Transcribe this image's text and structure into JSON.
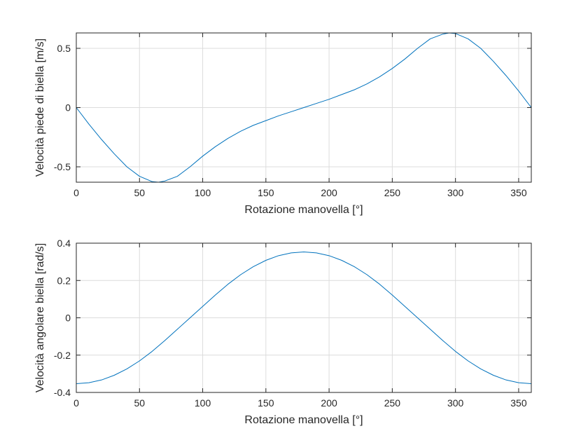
{
  "figure": {
    "background": "#ffffff",
    "axis_color": "#262626",
    "grid_color": "#dcdcdc",
    "line_color": "#0072bd"
  },
  "chart_data": [
    {
      "type": "line",
      "title": "",
      "xlabel": "Rotazione manovella [°]",
      "ylabel": "Velocità piede di biella [m/s]",
      "xlim": [
        0,
        360
      ],
      "ylim": [
        -0.63,
        0.63
      ],
      "xticks": [
        0,
        50,
        100,
        150,
        200,
        250,
        300,
        350
      ],
      "xtick_labels": [
        "0",
        "50",
        "100",
        "150",
        "200",
        "250",
        "300",
        "350"
      ],
      "yticks": [
        -0.5,
        0,
        0.5
      ],
      "ytick_labels": [
        "-0.5",
        "0",
        "0.5"
      ],
      "grid": true,
      "box": true,
      "series": [
        {
          "color": "#0072bd",
          "x": [
            0,
            10,
            20,
            30,
            40,
            50,
            60,
            65,
            70,
            80,
            90,
            100,
            110,
            120,
            130,
            140,
            150,
            160,
            170,
            180,
            190,
            200,
            210,
            220,
            230,
            240,
            250,
            260,
            270,
            280,
            290,
            295,
            300,
            310,
            320,
            330,
            340,
            350,
            360
          ],
          "y": [
            0,
            -0.14,
            -0.27,
            -0.39,
            -0.5,
            -0.58,
            -0.625,
            -0.63,
            -0.62,
            -0.58,
            -0.5,
            -0.41,
            -0.33,
            -0.26,
            -0.2,
            -0.15,
            -0.11,
            -0.07,
            -0.035,
            0,
            0.035,
            0.07,
            0.11,
            0.15,
            0.2,
            0.26,
            0.33,
            0.41,
            0.5,
            0.58,
            0.62,
            0.63,
            0.625,
            0.58,
            0.5,
            0.39,
            0.27,
            0.14,
            0
          ]
        }
      ]
    },
    {
      "type": "line",
      "title": "",
      "xlabel": "Rotazione manovella [°]",
      "ylabel": "Velocità angolare biella [rad/s]",
      "xlim": [
        0,
        360
      ],
      "ylim": [
        -0.4,
        0.4
      ],
      "xticks": [
        0,
        50,
        100,
        150,
        200,
        250,
        300,
        350
      ],
      "xtick_labels": [
        "0",
        "50",
        "100",
        "150",
        "200",
        "250",
        "300",
        "350"
      ],
      "yticks": [
        -0.4,
        -0.2,
        0,
        0.2,
        0.4
      ],
      "ytick_labels": [
        "-0.4",
        "-0.2",
        "0",
        "0.2",
        "0.4"
      ],
      "grid": true,
      "box": true,
      "series": [
        {
          "color": "#0072bd",
          "x": [
            0,
            10,
            20,
            30,
            40,
            50,
            60,
            70,
            80,
            90,
            100,
            110,
            120,
            130,
            140,
            150,
            160,
            170,
            180,
            190,
            200,
            210,
            220,
            230,
            240,
            250,
            260,
            270,
            280,
            290,
            300,
            310,
            320,
            330,
            340,
            350,
            360
          ],
          "y": [
            -0.353,
            -0.348,
            -0.333,
            -0.308,
            -0.274,
            -0.231,
            -0.18,
            -0.122,
            -0.061,
            0,
            0.061,
            0.122,
            0.18,
            0.231,
            0.274,
            0.308,
            0.333,
            0.348,
            0.353,
            0.348,
            0.333,
            0.308,
            0.274,
            0.231,
            0.18,
            0.122,
            0.061,
            0,
            -0.061,
            -0.122,
            -0.18,
            -0.231,
            -0.274,
            -0.308,
            -0.333,
            -0.348,
            -0.353
          ]
        }
      ]
    }
  ]
}
